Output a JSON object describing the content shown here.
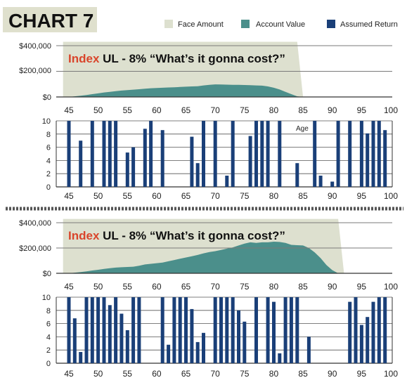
{
  "header": {
    "title": "CHART 7",
    "legend": [
      {
        "label": "Face Amount",
        "color": "#dde0cf"
      },
      {
        "label": "Account Value",
        "color": "#4b8f8b"
      },
      {
        "label": "Assumed Return",
        "color": "#1a3f78"
      }
    ]
  },
  "colors": {
    "face": "#dde0cf",
    "account": "#4b8f8b",
    "bar": "#1a3f78",
    "title_bg": "#dfe0cd",
    "index": "#d9452b",
    "grid": "#7a7a7a"
  },
  "panels": [
    {
      "caption_index": "Index",
      "caption_rest": " UL - 8%  “What’s it gonna cost?”",
      "age_label": "Age",
      "x_ticks": [
        "45",
        "50",
        "55",
        "60",
        "65",
        "70",
        "75",
        "80",
        "85",
        "90",
        "95",
        "100"
      ],
      "value_ticks": [
        "$400,000",
        "$200,000",
        "$0"
      ],
      "return_ticks": [
        "10",
        "8",
        "6",
        "4",
        "2",
        "0"
      ]
    },
    {
      "caption_index": "Index",
      "caption_rest": " UL - 8%  “What’s it gonna cost?”",
      "x_ticks": [
        "45",
        "50",
        "55",
        "60",
        "65",
        "70",
        "75",
        "80",
        "85",
        "90",
        "95",
        "100"
      ],
      "value_ticks": [
        "$400,000",
        "$200,000",
        "$0"
      ],
      "return_ticks": [
        "10",
        "8",
        "6",
        "4",
        "2",
        "0"
      ]
    }
  ],
  "chart_data": [
    {
      "type": "area",
      "x": [
        44,
        45,
        46,
        47,
        48,
        49,
        50,
        51,
        52,
        53,
        54,
        55,
        56,
        57,
        58,
        59,
        60,
        61,
        62,
        63,
        64,
        65,
        66,
        67,
        68,
        69,
        70,
        71,
        72,
        73,
        74,
        75,
        76,
        77,
        78,
        79,
        80,
        81,
        82,
        83,
        84,
        85
      ],
      "series": [
        {
          "name": "Face Amount",
          "values": [
            430000,
            430000,
            430000,
            430000,
            430000,
            430000,
            430000,
            430000,
            430000,
            430000,
            430000,
            430000,
            430000,
            430000,
            430000,
            430000,
            430000,
            430000,
            430000,
            430000,
            430000,
            430000,
            430000,
            430000,
            430000,
            430000,
            430000,
            430000,
            430000,
            430000,
            430000,
            430000,
            430000,
            430000,
            430000,
            430000,
            430000,
            430000,
            430000,
            430000,
            430000,
            0
          ]
        },
        {
          "name": "Account Value",
          "values": [
            0,
            0,
            5000,
            10000,
            15000,
            22000,
            28000,
            35000,
            40000,
            45000,
            50000,
            53000,
            57000,
            60000,
            64000,
            68000,
            70000,
            72000,
            74000,
            75000,
            78000,
            80000,
            82000,
            84000,
            90000,
            95000,
            98000,
            97000,
            96000,
            95000,
            94000,
            93000,
            92000,
            90000,
            88000,
            82000,
            72000,
            58000,
            40000,
            22000,
            5000,
            0
          ]
        }
      ],
      "ylim": [
        0,
        400000
      ]
    },
    {
      "type": "bar",
      "categories": [
        "45",
        "46",
        "47",
        "48",
        "49",
        "50",
        "51",
        "52",
        "53",
        "54",
        "55",
        "56",
        "57",
        "58",
        "59",
        "60",
        "61",
        "62",
        "63",
        "64",
        "65",
        "66",
        "67",
        "68",
        "69",
        "70",
        "71",
        "72",
        "73",
        "74",
        "75",
        "76",
        "77",
        "78",
        "79",
        "80",
        "81",
        "82",
        "83",
        "84",
        "85",
        "86",
        "87",
        "88",
        "89",
        "90",
        "91",
        "92",
        "93",
        "94",
        "95",
        "96",
        "97",
        "98",
        "99"
      ],
      "series": [
        {
          "name": "Assumed Return",
          "values": [
            10,
            0,
            7,
            0,
            10,
            0,
            10,
            10,
            10,
            0,
            5.2,
            6,
            0,
            8.8,
            10,
            0,
            8.6,
            0,
            0,
            0,
            0,
            7.6,
            3.6,
            10,
            0,
            10,
            0,
            1.7,
            10,
            0,
            0,
            7.7,
            10,
            10,
            10,
            0,
            10,
            0,
            0,
            3.6,
            0,
            0,
            10,
            1.7,
            0,
            0.8,
            10,
            0,
            10,
            0,
            10,
            8.1,
            10,
            10,
            8.6
          ]
        }
      ],
      "ylim": [
        0,
        10
      ]
    },
    {
      "type": "area",
      "x": [
        44,
        45,
        46,
        47,
        48,
        49,
        50,
        51,
        52,
        53,
        54,
        55,
        56,
        57,
        58,
        59,
        60,
        61,
        62,
        63,
        64,
        65,
        66,
        67,
        68,
        69,
        70,
        71,
        72,
        73,
        74,
        75,
        76,
        77,
        78,
        79,
        80,
        81,
        82,
        83,
        84,
        85,
        86,
        87,
        88,
        89,
        90,
        91,
        92
      ],
      "series": [
        {
          "name": "Face Amount",
          "values": [
            430000,
            430000,
            430000,
            430000,
            430000,
            430000,
            430000,
            430000,
            430000,
            430000,
            430000,
            430000,
            430000,
            430000,
            430000,
            430000,
            430000,
            430000,
            430000,
            430000,
            430000,
            430000,
            430000,
            430000,
            430000,
            430000,
            430000,
            430000,
            430000,
            430000,
            430000,
            430000,
            430000,
            430000,
            430000,
            430000,
            430000,
            430000,
            430000,
            430000,
            430000,
            430000,
            430000,
            430000,
            430000,
            430000,
            430000,
            430000,
            0
          ]
        },
        {
          "name": "Account Value",
          "values": [
            0,
            0,
            5000,
            10000,
            15000,
            22000,
            28000,
            35000,
            40000,
            45000,
            48000,
            50000,
            52000,
            60000,
            70000,
            75000,
            80000,
            85000,
            95000,
            105000,
            115000,
            125000,
            135000,
            145000,
            158000,
            168000,
            175000,
            185000,
            195000,
            205000,
            220000,
            235000,
            245000,
            240000,
            245000,
            245000,
            250000,
            248000,
            240000,
            225000,
            222000,
            220000,
            200000,
            165000,
            120000,
            65000,
            25000,
            0,
            0
          ]
        }
      ],
      "ylim": [
        0,
        400000
      ]
    },
    {
      "type": "bar",
      "categories": [
        "45",
        "46",
        "47",
        "48",
        "49",
        "50",
        "51",
        "52",
        "53",
        "54",
        "55",
        "56",
        "57",
        "58",
        "59",
        "60",
        "61",
        "62",
        "63",
        "64",
        "65",
        "66",
        "67",
        "68",
        "69",
        "70",
        "71",
        "72",
        "73",
        "74",
        "75",
        "76",
        "77",
        "78",
        "79",
        "80",
        "81",
        "82",
        "83",
        "84",
        "85",
        "86",
        "87",
        "88",
        "89",
        "90",
        "91",
        "92",
        "93",
        "94",
        "95",
        "96",
        "97",
        "98",
        "99"
      ],
      "series": [
        {
          "name": "Assumed Return",
          "values": [
            10,
            6.8,
            1.7,
            10,
            10,
            10,
            10,
            8.8,
            10,
            7.5,
            5,
            10,
            10,
            0,
            0,
            0,
            10,
            2.8,
            10,
            10,
            10,
            8.2,
            3.2,
            4.6,
            0,
            10,
            10,
            10,
            10,
            8,
            6.3,
            0,
            10,
            0,
            10,
            9.3,
            1.5,
            10,
            10,
            10,
            0,
            4,
            0,
            0,
            0,
            0,
            0,
            0,
            9.3,
            10,
            5.8,
            7,
            9.3,
            10,
            10
          ]
        }
      ],
      "ylim": [
        0,
        10
      ]
    }
  ]
}
